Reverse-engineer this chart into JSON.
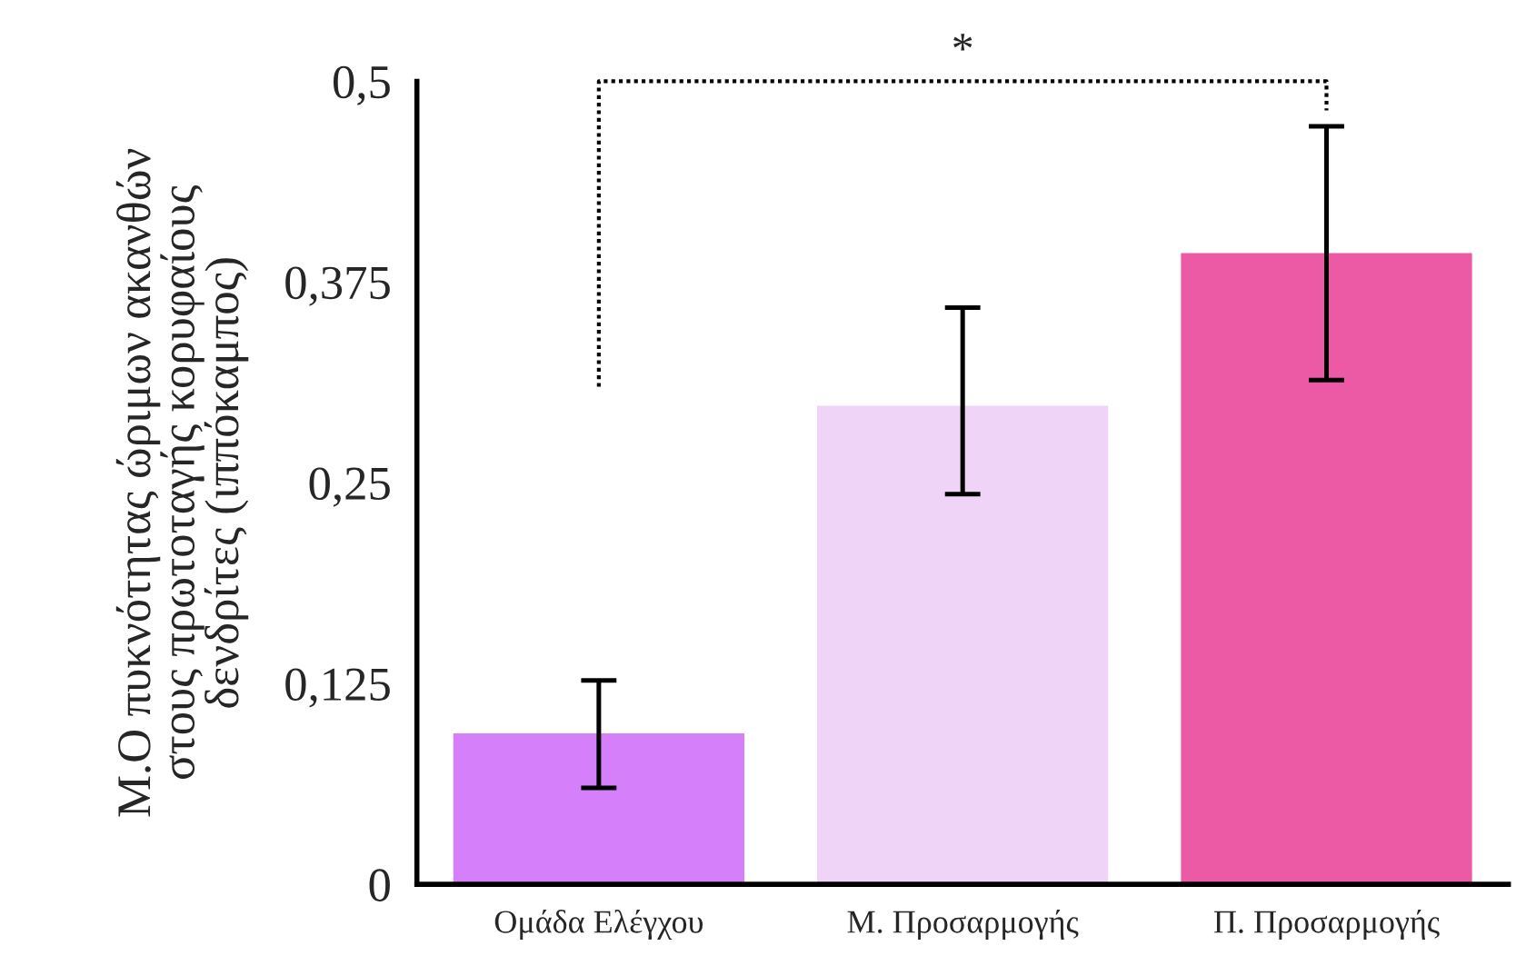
{
  "chart_data": {
    "type": "bar",
    "ylabel": "Μ.Ο πυκνότητας ώριμων ακανθών\nστους πρωτοταγής κορυφαίους\nδενδρίτες (ιππόκαμπος)",
    "categories": [
      "Ομάδα Ελέγχου",
      "Μ. Προσαρμογής",
      "Π. Προσαρμογής"
    ],
    "values": [
      0.094,
      0.298,
      0.393
    ],
    "colors": [
      "#d580fa",
      "#f0d4f8",
      "#ec5aa6"
    ],
    "errors": [
      [
        0.06,
        0.127
      ],
      [
        0.243,
        0.359
      ],
      [
        0.314,
        0.472
      ]
    ],
    "ylim": [
      0,
      0.5
    ],
    "yticks": [
      0,
      {
        "value": 0.125,
        "label": "0,125"
      },
      {
        "value": 0.25,
        "label": "0,25"
      },
      {
        "value": 0.375,
        "label": "0,375"
      },
      {
        "value": 0.5,
        "label": "0,5"
      }
    ],
    "grid": false,
    "annotations": [
      "*"
    ]
  }
}
